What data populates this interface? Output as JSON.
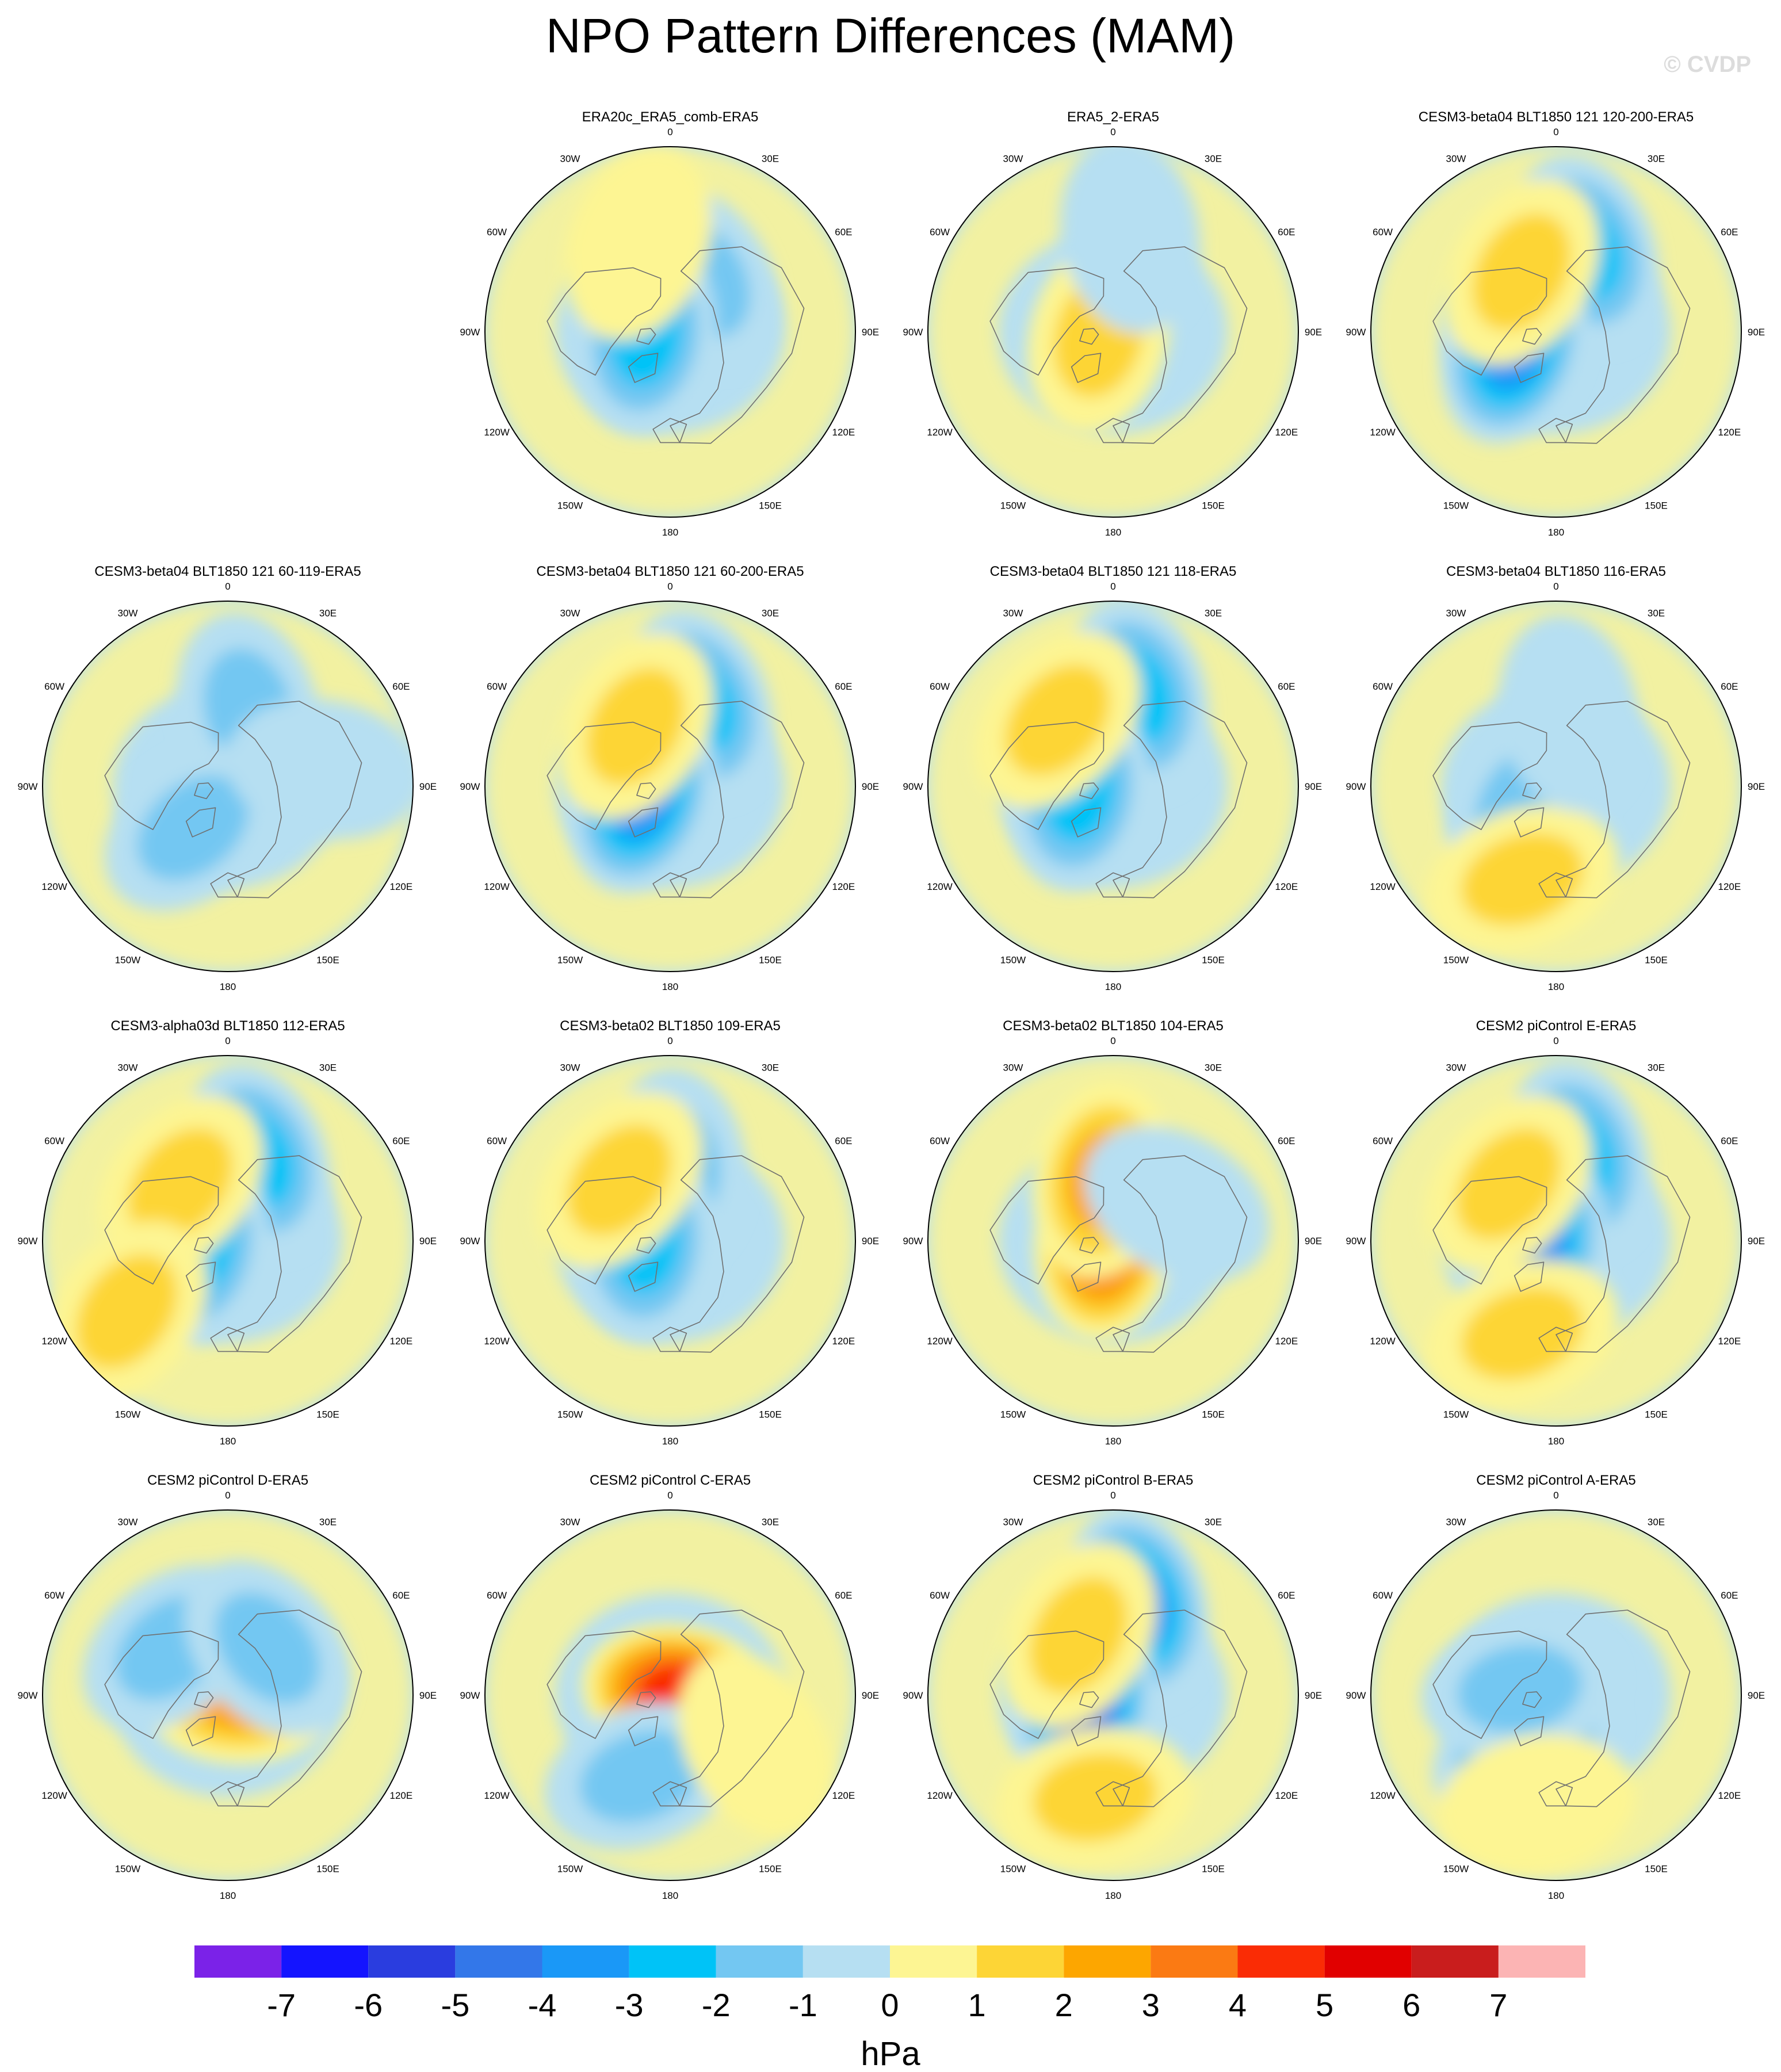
{
  "title": "NPO Pattern Differences (MAM)",
  "watermark": "© CVDP",
  "colors": {
    "background": "#ffffff",
    "land_outline": "#6f6f6f",
    "panel_border": "#000000",
    "palette": [
      "#7b22e8",
      "#1414ff",
      "#2a3ddf",
      "#3377e9",
      "#1a98f7",
      "#00c3f7",
      "#73c7f2",
      "#b6dff2",
      "#fdf593",
      "#fdd536",
      "#fda600",
      "#fb7a13",
      "#fa2c05",
      "#e10000",
      "#c91d1d",
      "#fcb4b4"
    ]
  },
  "longitude_labels": [
    "180",
    "150E",
    "120E",
    "90E",
    "60E",
    "30E",
    "0",
    "30W",
    "60W",
    "90W",
    "120W",
    "150W"
  ],
  "chart_data": {
    "type": "heatmap",
    "projection": "polar stereographic (Northern Hemisphere)",
    "variable": "sea level pressure difference",
    "panels": [
      {
        "title": "ERA20c_ERA5_comb-ERA5",
        "row": 0,
        "col": 1,
        "features": [
          {
            "lon": 150,
            "colat": 25,
            "value": -2
          },
          {
            "lon": -80,
            "colat": 10,
            "value": -3
          },
          {
            "lon": -160,
            "colat": 38,
            "value": 1
          }
        ]
      },
      {
        "title": "ERA5_2-ERA5",
        "row": 0,
        "col": 2,
        "features": [
          {
            "lon": -75,
            "colat": 6,
            "value": 2
          },
          {
            "lon": 170,
            "colat": 40,
            "value": -1
          }
        ]
      },
      {
        "title": "CESM3-beta04 BLT1850 121 120-200-ERA5",
        "row": 0,
        "col": 3,
        "features": [
          {
            "lon": 160,
            "colat": 35,
            "value": -3
          },
          {
            "lon": -70,
            "colat": 18,
            "value": -4
          },
          {
            "lon": -150,
            "colat": 28,
            "value": 2
          }
        ]
      },
      {
        "title": "CESM3-beta04 BLT1850 121 60-119-ERA5",
        "row": 1,
        "col": 0,
        "features": [
          {
            "lon": 165,
            "colat": 32,
            "value": -2
          },
          {
            "lon": -40,
            "colat": 22,
            "value": -2
          },
          {
            "lon": 100,
            "colat": 40,
            "value": -1
          }
        ]
      },
      {
        "title": "CESM3-beta04 BLT1850 121 60-200-ERA5",
        "row": 1,
        "col": 1,
        "features": [
          {
            "lon": 160,
            "colat": 35,
            "value": -3
          },
          {
            "lon": -70,
            "colat": 12,
            "value": -4
          },
          {
            "lon": -150,
            "colat": 28,
            "value": 2
          }
        ]
      },
      {
        "title": "CESM3-beta04 BLT1850 121 118-ERA5",
        "row": 1,
        "col": 2,
        "features": [
          {
            "lon": 165,
            "colat": 38,
            "value": -3
          },
          {
            "lon": -80,
            "colat": 14,
            "value": -3
          },
          {
            "lon": -140,
            "colat": 35,
            "value": 2
          }
        ]
      },
      {
        "title": "CESM3-beta04 BLT1850 116-ERA5",
        "row": 1,
        "col": 3,
        "features": [
          {
            "lon": -60,
            "colat": 15,
            "value": -2
          },
          {
            "lon": -20,
            "colat": 40,
            "value": 2
          },
          {
            "lon": 170,
            "colat": 30,
            "value": -1
          }
        ]
      },
      {
        "title": "CESM3-alpha03d BLT1850 112-ERA5",
        "row": 2,
        "col": 0,
        "features": [
          {
            "lon": 160,
            "colat": 35,
            "value": -3
          },
          {
            "lon": -80,
            "colat": 12,
            "value": -3
          },
          {
            "lon": -140,
            "colat": 30,
            "value": 2
          },
          {
            "lon": -55,
            "colat": 50,
            "value": 2
          }
        ]
      },
      {
        "title": "CESM3-beta02 BLT1850 109-ERA5",
        "row": 2,
        "col": 1,
        "features": [
          {
            "lon": 175,
            "colat": 30,
            "value": -2
          },
          {
            "lon": -85,
            "colat": 10,
            "value": -3
          },
          {
            "lon": -140,
            "colat": 32,
            "value": 2
          }
        ]
      },
      {
        "title": "CESM3-beta02 BLT1850 104-ERA5",
        "row": 2,
        "col": 2,
        "features": [
          {
            "lon": -85,
            "colat": 4,
            "value": 4
          },
          {
            "lon": -170,
            "colat": 25,
            "value": 3
          },
          {
            "lon": 120,
            "colat": 30,
            "value": -1
          }
        ]
      },
      {
        "title": "CESM2 piControl E-ERA5",
        "row": 2,
        "col": 3,
        "features": [
          {
            "lon": 165,
            "colat": 35,
            "value": -3
          },
          {
            "lon": -80,
            "colat": 8,
            "value": -4
          },
          {
            "lon": -20,
            "colat": 40,
            "value": 2
          },
          {
            "lon": -140,
            "colat": 30,
            "value": 2
          }
        ]
      },
      {
        "title": "CESM2 piControl D-ERA5",
        "row": 3,
        "col": 0,
        "features": [
          {
            "lon": 90,
            "colat": 5,
            "value": 3
          },
          {
            "lon": -130,
            "colat": 30,
            "value": -2
          },
          {
            "lon": 140,
            "colat": 25,
            "value": -2
          }
        ]
      },
      {
        "title": "CESM2 piControl C-ERA5",
        "row": 3,
        "col": 1,
        "features": [
          {
            "lon": 100,
            "colat": 4,
            "value": 5
          },
          {
            "lon": -20,
            "colat": 35,
            "value": -2
          },
          {
            "lon": 60,
            "colat": 40,
            "value": 1
          }
        ]
      },
      {
        "title": "CESM2 piControl B-ERA5",
        "row": 3,
        "col": 2,
        "features": [
          {
            "lon": 165,
            "colat": 38,
            "value": -4
          },
          {
            "lon": -80,
            "colat": 12,
            "value": -5
          },
          {
            "lon": -150,
            "colat": 28,
            "value": 2
          },
          {
            "lon": -10,
            "colat": 42,
            "value": 2
          }
        ]
      },
      {
        "title": "CESM2 piControl A-ERA5",
        "row": 3,
        "col": 3,
        "features": [
          {
            "lon": -30,
            "colat": 25,
            "value": -3
          },
          {
            "lon": -100,
            "colat": 15,
            "value": -2
          },
          {
            "lon": -10,
            "colat": 45,
            "value": 1
          }
        ]
      }
    ],
    "colorbar": {
      "boundaries": [
        "-7",
        "-6",
        "-5",
        "-4",
        "-3",
        "-2",
        "-1",
        "0",
        "1",
        "2",
        "3",
        "4",
        "5",
        "6",
        "7"
      ],
      "unit": "hPa",
      "orientation": "horizontal",
      "position": "bottom"
    }
  }
}
